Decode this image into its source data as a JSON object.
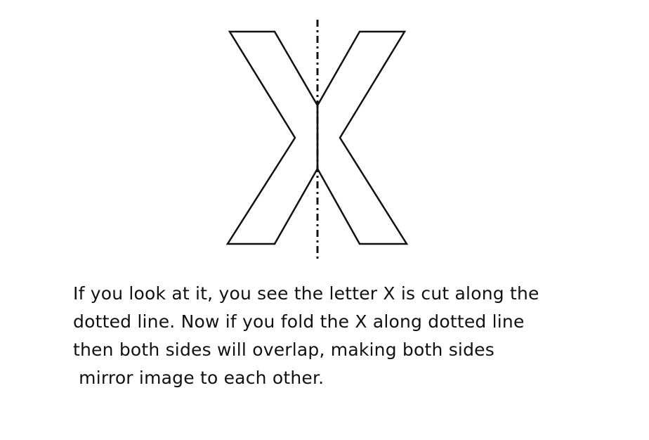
{
  "figure": {
    "shape": "letter-x-outline",
    "axis": "dash-dot-symmetry-line",
    "stroke_color": "#111111",
    "background_color": "#ffffff"
  },
  "caption": {
    "lines": [
      "If you look at it, you see the letter X is cut along the",
      "dotted line. Now if you fold the X along dotted line",
      "then both sides will overlap, making both sides",
      " mirror image to each other."
    ]
  }
}
